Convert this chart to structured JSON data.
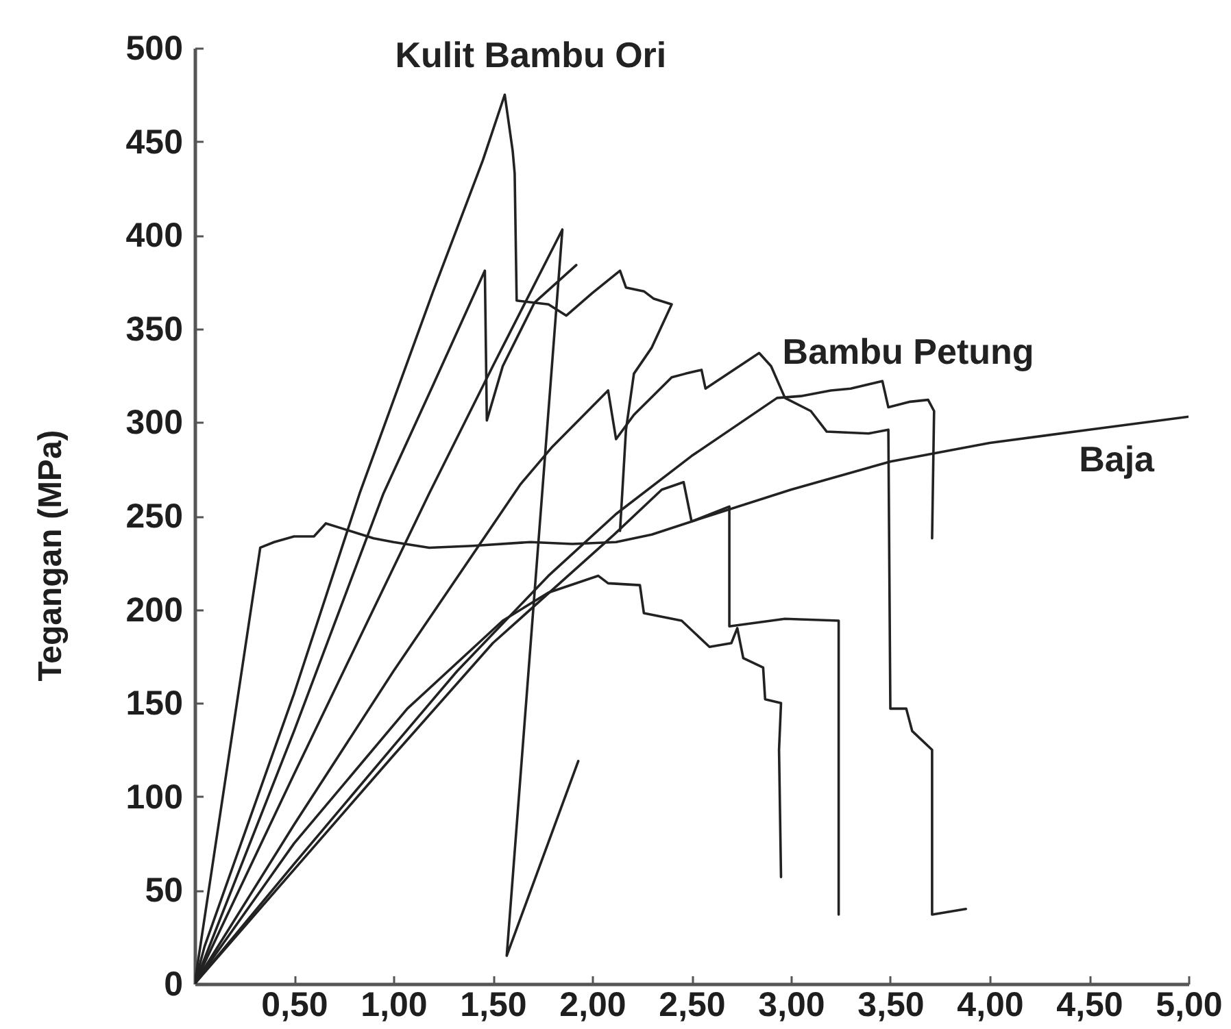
{
  "chart_data": {
    "type": "line",
    "ylabel": "Tegangan (MPa)",
    "xlim": [
      0,
      5
    ],
    "ylim": [
      0,
      500
    ],
    "xticks": [
      {
        "value": 0.5,
        "label": "0,50"
      },
      {
        "value": 1,
        "label": "1,00"
      },
      {
        "value": 1.5,
        "label": "1,50"
      },
      {
        "value": 2,
        "label": "2,00"
      },
      {
        "value": 2.5,
        "label": "2,50"
      },
      {
        "value": 3,
        "label": "3,00"
      },
      {
        "value": 3.5,
        "label": "3,50"
      },
      {
        "value": 4,
        "label": "4,00"
      },
      {
        "value": 4.5,
        "label": "4,50"
      },
      {
        "value": 5,
        "label": "5,00"
      }
    ],
    "yticks": [
      0,
      50,
      100,
      150,
      200,
      250,
      300,
      350,
      400,
      450,
      500
    ],
    "grid": false,
    "series": [
      {
        "name": "Kulit Bambu Ori",
        "color": "#222222",
        "x": [
          0,
          0.05,
          0.5,
          0.83,
          1.2,
          1.45,
          1.56,
          1.6,
          1.61,
          1.62,
          1.78,
          1.87,
          2.0,
          2.14,
          2.17,
          2.26,
          2.31,
          2.4,
          2.3,
          2.21,
          2.17,
          2.14
        ],
        "values": [
          0,
          20,
          155,
          262,
          370,
          440,
          475,
          445,
          433,
          365,
          363,
          357,
          369,
          381,
          372,
          370,
          366,
          363,
          340,
          326,
          296,
          242
        ]
      },
      {
        "color": "#222222",
        "x": [
          0,
          0.5,
          0.95,
          1.2,
          1.46,
          1.47,
          1.55,
          1.71,
          1.92
        ],
        "values": [
          0,
          135,
          262,
          320,
          381,
          301,
          330,
          364,
          384
        ]
      },
      {
        "color": "#222222",
        "x": [
          0,
          0.5,
          1.18,
          1.5,
          1.85,
          1.57,
          1.93
        ],
        "values": [
          0,
          112,
          262,
          330,
          403,
          15,
          119
        ]
      },
      {
        "name": "Bambu Petung",
        "color": "#222222",
        "x": [
          0,
          0.5,
          1.0,
          1.64,
          1.8,
          2.08,
          2.12,
          2.21,
          2.4,
          2.47,
          2.55,
          2.57,
          2.84,
          2.9,
          2.97,
          3.1,
          3.18,
          3.39,
          3.49,
          3.5,
          3.58,
          3.61,
          3.71,
          3.71,
          3.88
        ],
        "values": [
          0,
          85,
          167,
          267,
          287,
          317,
          291,
          304,
          324,
          326,
          328,
          318,
          337,
          330,
          313,
          306,
          295,
          294,
          296,
          147,
          147,
          135,
          125,
          37,
          40
        ]
      },
      {
        "color": "#222222",
        "x": [
          0,
          0.5,
          1.0,
          1.32,
          1.78,
          2.12,
          2.5,
          2.93,
          3.05,
          3.2,
          3.3,
          3.46,
          3.49,
          3.6,
          3.69,
          3.72,
          3.71
        ],
        "values": [
          0,
          64,
          127,
          167,
          218,
          251,
          282,
          313,
          314,
          317,
          318,
          322,
          308,
          311,
          312,
          306,
          238
        ]
      },
      {
        "color": "#222222",
        "x": [
          0,
          0.5,
          1.0,
          1.5,
          2.11,
          2.35,
          2.46,
          2.5,
          2.69,
          2.69,
          2.97,
          3.24,
          3.24
        ],
        "values": [
          0,
          61,
          122,
          182,
          240,
          264,
          268,
          247,
          255,
          191,
          195,
          194,
          37
        ]
      },
      {
        "color": "#222222",
        "x": [
          0,
          0.5,
          1.07,
          1.55,
          1.78,
          2.03,
          2.08,
          2.24,
          2.26,
          2.45,
          2.59,
          2.7,
          2.73,
          2.76,
          2.86,
          2.87,
          2.95,
          2.94,
          2.95
        ],
        "values": [
          0,
          75,
          147,
          194,
          209,
          218,
          214,
          213,
          198,
          194,
          180,
          182,
          190,
          174,
          169,
          152,
          150,
          125,
          57
        ]
      },
      {
        "name": "Baja",
        "color": "#222222",
        "x": [
          0,
          0.33,
          0.4,
          0.5,
          0.6,
          0.66,
          0.75,
          0.9,
          1.0,
          1.18,
          1.4,
          1.69,
          1.9,
          2.12,
          2.3,
          2.5,
          3.0,
          3.5,
          4.0,
          4.5,
          5.0
        ],
        "values": [
          0,
          233,
          236,
          239,
          239,
          246,
          243,
          238,
          236,
          233,
          234,
          236,
          235,
          236,
          240,
          247,
          264,
          279,
          289,
          296,
          303
        ]
      }
    ]
  }
}
